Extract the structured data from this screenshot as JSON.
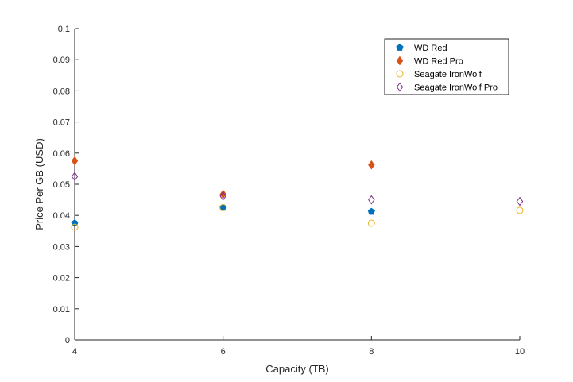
{
  "chart_data": {
    "type": "scatter",
    "xlabel": "Capacity (TB)",
    "ylabel": "Price Per GB (USD)",
    "xlim": [
      4,
      10
    ],
    "ylim": [
      0,
      0.1
    ],
    "xticks": [
      "4",
      "6",
      "8",
      "10"
    ],
    "yticks": [
      "0",
      "0.01",
      "0.02",
      "0.03",
      "0.04",
      "0.05",
      "0.06",
      "0.07",
      "0.08",
      "0.09",
      "0.1"
    ],
    "grid": false,
    "legend_position": "top-right",
    "series": [
      {
        "name": "WD Red",
        "marker": "filled-pentagon",
        "color": "#0072bd",
        "points": [
          [
            4,
            0.0375
          ],
          [
            6,
            0.0425
          ],
          [
            8,
            0.0412
          ]
        ]
      },
      {
        "name": "WD Red Pro",
        "marker": "filled-diamond",
        "color": "#d95319",
        "points": [
          [
            4,
            0.0575
          ],
          [
            6,
            0.0468
          ],
          [
            8,
            0.0562
          ]
        ]
      },
      {
        "name": "Seagate IronWolf",
        "marker": "open-circle",
        "color": "#edb120",
        "points": [
          [
            4,
            0.0362
          ],
          [
            6,
            0.0425
          ],
          [
            8,
            0.0375
          ],
          [
            10,
            0.0416
          ]
        ]
      },
      {
        "name": "Seagate IronWolf Pro",
        "marker": "open-diamond",
        "color": "#7e2f8e",
        "points": [
          [
            4,
            0.0525
          ],
          [
            6,
            0.0462
          ],
          [
            8,
            0.045
          ],
          [
            10,
            0.0445
          ]
        ]
      }
    ]
  }
}
